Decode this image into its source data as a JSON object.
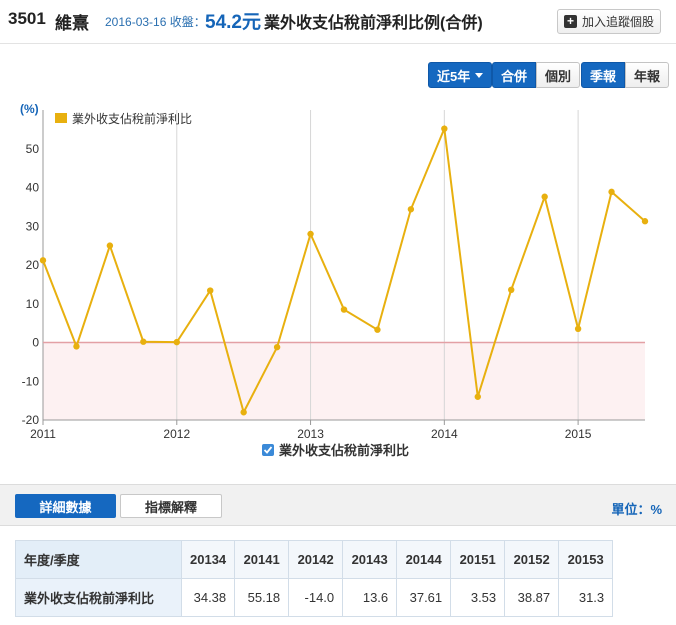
{
  "header": {
    "code": "3501",
    "name": "維熹",
    "date_label": "2016-03-16 收盤：",
    "price": "54.2元",
    "title": "業外收支佔稅前淨利比例(合併)",
    "track_button": "加入追蹤個股"
  },
  "controls": {
    "range": "近5年",
    "consolidation": [
      "合併",
      "個別"
    ],
    "period": [
      "季報",
      "年報"
    ]
  },
  "colors": {
    "accent": "#1568c0",
    "series": "#e8b00f",
    "negative_band": "#fdf1f2",
    "zero_line": "#e3a0a5"
  },
  "chart_data": {
    "type": "line",
    "ylabel": "(%)",
    "ylim": [
      -20,
      60
    ],
    "yticks": [
      -20,
      -10,
      0,
      10,
      20,
      30,
      40,
      50
    ],
    "xticks": [
      "2011",
      "2012",
      "2013",
      "2014",
      "2015"
    ],
    "grid": "vertical",
    "legend": "top-left",
    "series": [
      {
        "name": "業外收支佔稅前淨利比",
        "x": [
          "2011Q1",
          "2011Q2",
          "2011Q3",
          "2011Q4",
          "2012Q1",
          "2012Q2",
          "2012Q3",
          "2012Q4",
          "2013Q1",
          "2013Q2",
          "2013Q3",
          "2013Q4",
          "2014Q1",
          "2014Q2",
          "2014Q3",
          "2014Q4",
          "2015Q1",
          "2015Q2",
          "2015Q3"
        ],
        "values": [
          21.2,
          -1.0,
          25.0,
          0.2,
          0.1,
          13.4,
          -18.0,
          -1.2,
          28.0,
          8.5,
          3.3,
          34.38,
          55.18,
          -14.0,
          13.6,
          37.61,
          3.53,
          38.87,
          31.3
        ]
      }
    ]
  },
  "bottom_legend": "業外收支佔稅前淨利比",
  "tabs": {
    "details": "詳細數據",
    "indicator": "指標解釋",
    "unit": "單位：%"
  },
  "table": {
    "corner": "年度/季度",
    "columns": [
      "20134",
      "20141",
      "20142",
      "20143",
      "20144",
      "20151",
      "20152",
      "20153"
    ],
    "row_label": "業外收支佔稅前淨利比",
    "values": [
      "34.38",
      "55.18",
      "-14.0",
      "13.6",
      "37.61",
      "3.53",
      "38.87",
      "31.3"
    ]
  }
}
